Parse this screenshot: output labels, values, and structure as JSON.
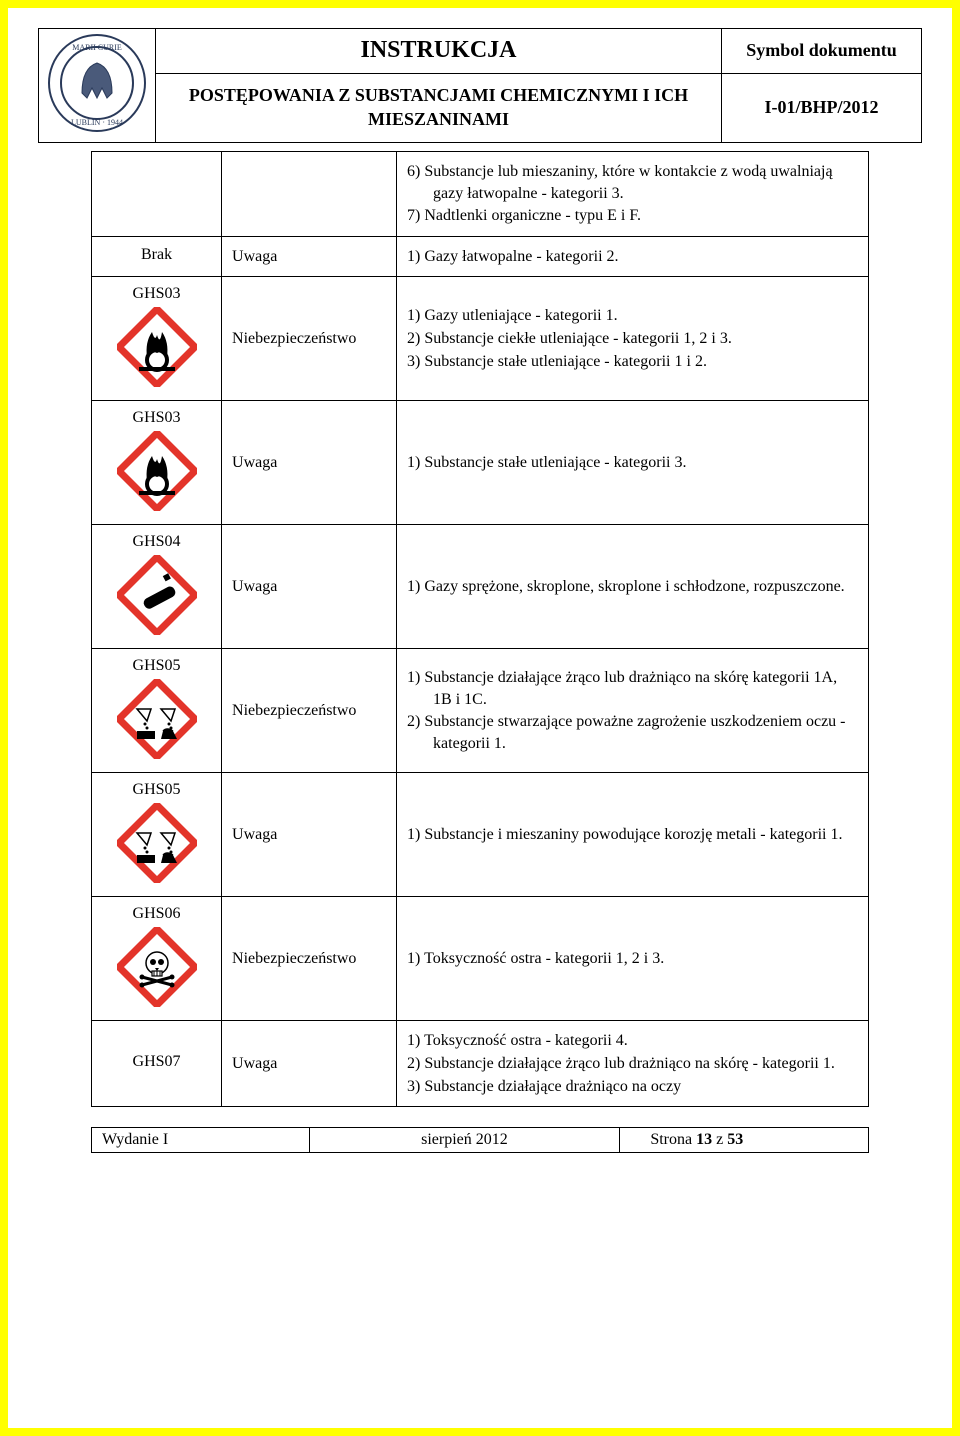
{
  "header": {
    "title": "INSTRUKCJA",
    "subtitle": "POSTĘPOWANIA Z SUBSTANCJAMI CHEMICZNYMI I ICH MIESZANINAMI",
    "doc_symbol_label": "Symbol dokumentu",
    "doc_symbol_value": "I-01/BHP/2012"
  },
  "rows": [
    {
      "col1_text": "",
      "pictogram": null,
      "col2": "",
      "items": [
        "6)  Substancje lub mieszaniny, które w kontakcie z wodą uwalniają gazy łatwopalne - kategorii 3.",
        "7)  Nadtlenki organiczne - typu E i F."
      ]
    },
    {
      "col1_text": "Brak",
      "pictogram": null,
      "col2": "Uwaga",
      "items": [
        "1)  Gazy łatwopalne - kategorii 2."
      ]
    },
    {
      "col1_text": "GHS03",
      "pictogram": "flame-over-circle",
      "col2": "Niebezpieczeństwo",
      "items": [
        "1)  Gazy utleniające - kategorii 1.",
        "2)  Substancje ciekłe utleniające - kategorii 1, 2 i 3.",
        "3)  Substancje stałe utleniające - kategorii 1 i 2."
      ]
    },
    {
      "col1_text": "GHS03",
      "pictogram": "flame-over-circle",
      "col2": "Uwaga",
      "items": [
        "1)  Substancje stałe utleniające - kategorii 3."
      ]
    },
    {
      "col1_text": "GHS04",
      "pictogram": "gas-cylinder",
      "col2": "Uwaga",
      "items": [
        "1)  Gazy sprężone, skroplone, skroplone i schłodzone, rozpuszczone."
      ]
    },
    {
      "col1_text": "GHS05",
      "pictogram": "corrosion",
      "col2": "Niebezpieczeństwo",
      "items": [
        "1)  Substancje działające żrąco lub drażniąco na skórę kategorii 1A, 1B i 1C.",
        "2)  Substancje stwarzające poważne zagrożenie uszkodzeniem oczu - kategorii 1."
      ]
    },
    {
      "col1_text": "GHS05",
      "pictogram": "corrosion",
      "col2": "Uwaga",
      "items": [
        "1)  Substancje i mieszaniny powodujące korozję metali - kategorii 1."
      ]
    },
    {
      "col1_text": "GHS06",
      "pictogram": "skull",
      "col2": "Niebezpieczeństwo",
      "items": [
        "1)  Toksyczność ostra - kategorii 1, 2 i 3."
      ]
    },
    {
      "col1_text": "GHS07",
      "pictogram": null,
      "col2": "Uwaga",
      "items": [
        "1)  Toksyczność ostra - kategorii 4.",
        "2)  Substancje działające żrąco lub drażniąco na skórę - kategorii 1.",
        "3)  Substancje działające drażniąco na oczy"
      ]
    }
  ],
  "footer": {
    "edition": "Wydanie I",
    "date": "sierpień 2012",
    "page": "Strona 13 z 53"
  },
  "colors": {
    "frame_red": "#e3342a",
    "border_yellow": "#ffff00"
  }
}
